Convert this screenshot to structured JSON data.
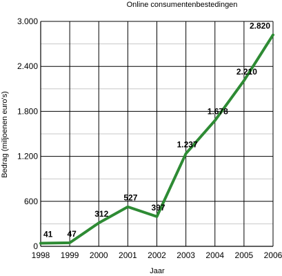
{
  "chart_data": {
    "type": "line",
    "title": "Online consumentenbestedingen",
    "xlabel": "Jaar",
    "ylabel": "Bedrag (miljoenen euro's)",
    "categories": [
      "1998",
      "1999",
      "2000",
      "2001",
      "2002",
      "2003",
      "2004",
      "2005",
      "2006"
    ],
    "ylim": [
      0,
      3000
    ],
    "yticks": [
      0,
      600,
      1200,
      1800,
      2400,
      3000
    ],
    "ytick_labels": [
      "0",
      "600",
      "1.200",
      "1.800",
      "2.400",
      "3.000"
    ],
    "series": [
      {
        "values": [
          41,
          47,
          312,
          527,
          397,
          1237,
          1678,
          2210,
          2820
        ],
        "labels": [
          "41",
          "47",
          "312",
          "527",
          "397",
          "1.237",
          "1.678",
          "2.210",
          "2.820"
        ],
        "color": "#2e8b34"
      }
    ],
    "grid": true,
    "minor_grid_color": "#c8c8c8",
    "major_grid_color": "#000000"
  }
}
